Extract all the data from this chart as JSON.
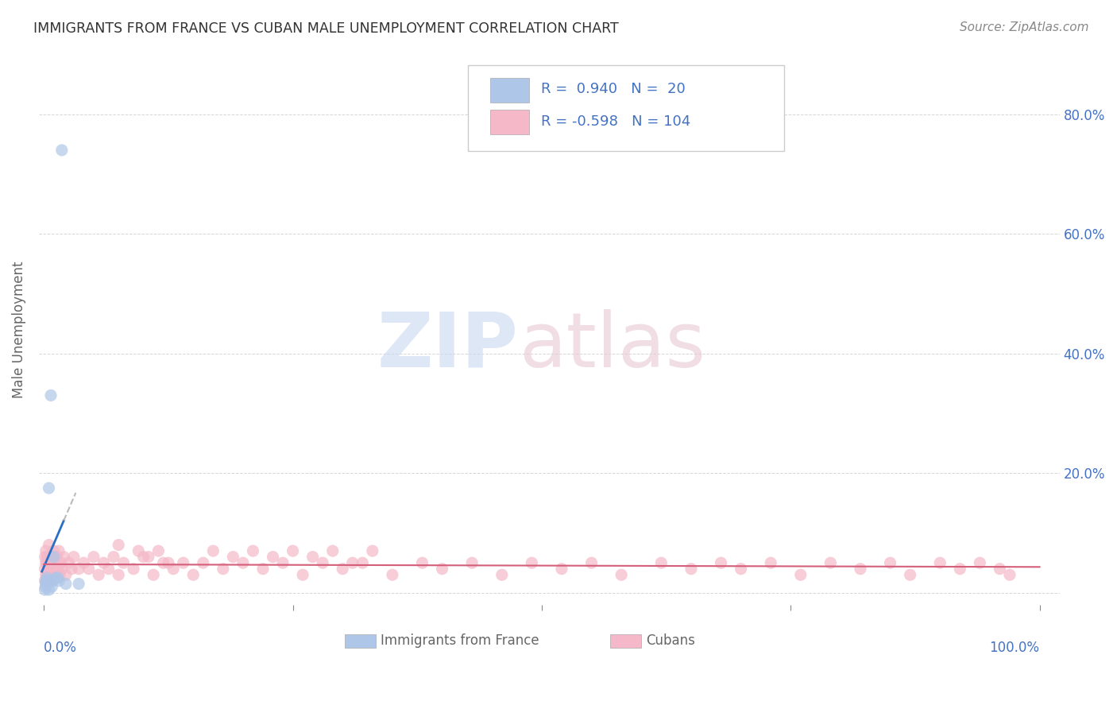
{
  "title": "IMMIGRANTS FROM FRANCE VS CUBAN MALE UNEMPLOYMENT CORRELATION CHART",
  "source": "Source: ZipAtlas.com",
  "ylabel": "Male Unemployment",
  "background_color": "#ffffff",
  "grid_color": "#cccccc",
  "title_color": "#333333",
  "axis_color": "#4472C4",
  "france_scatter_color": "#aec6e8",
  "cuban_scatter_color": "#f4b8c8",
  "cuban_line_color": "#d45f7a",
  "france_line_color": "#2b6fc4",
  "france_line_ext_color": "#bbbbbb",
  "legend_text_color": "#4472C4",
  "watermark_zip_color": "#c8d8f0",
  "watermark_atlas_color": "#e8c8d5",
  "ytick_color": "#4472C4",
  "xtick_color": "#4472C4",
  "france_x": [
    0.001,
    0.0015,
    0.002,
    0.002,
    0.003,
    0.003,
    0.004,
    0.005,
    0.005,
    0.006,
    0.007,
    0.008,
    0.009,
    0.01,
    0.012,
    0.014,
    0.015,
    0.018,
    0.022,
    0.035
  ],
  "france_y": [
    0.005,
    0.01,
    0.015,
    0.02,
    0.018,
    0.025,
    0.02,
    0.175,
    0.005,
    0.02,
    0.33,
    0.01,
    0.02,
    0.06,
    0.025,
    0.025,
    0.02,
    0.74,
    0.015,
    0.015
  ],
  "cuban_x": [
    0.001,
    0.001,
    0.001,
    0.002,
    0.002,
    0.002,
    0.002,
    0.003,
    0.003,
    0.003,
    0.003,
    0.004,
    0.004,
    0.004,
    0.005,
    0.005,
    0.005,
    0.006,
    0.006,
    0.007,
    0.007,
    0.008,
    0.008,
    0.009,
    0.009,
    0.01,
    0.01,
    0.011,
    0.012,
    0.013,
    0.014,
    0.015,
    0.016,
    0.017,
    0.018,
    0.02,
    0.022,
    0.025,
    0.028,
    0.03,
    0.035,
    0.04,
    0.045,
    0.05,
    0.055,
    0.06,
    0.065,
    0.07,
    0.075,
    0.08,
    0.09,
    0.1,
    0.11,
    0.12,
    0.13,
    0.14,
    0.15,
    0.16,
    0.18,
    0.2,
    0.22,
    0.24,
    0.26,
    0.28,
    0.3,
    0.32,
    0.35,
    0.38,
    0.4,
    0.43,
    0.46,
    0.49,
    0.52,
    0.55,
    0.58,
    0.62,
    0.65,
    0.68,
    0.7,
    0.73,
    0.76,
    0.79,
    0.82,
    0.85,
    0.87,
    0.9,
    0.92,
    0.94,
    0.96,
    0.97,
    0.075,
    0.095,
    0.105,
    0.115,
    0.125,
    0.17,
    0.19,
    0.21,
    0.23,
    0.25,
    0.27,
    0.29,
    0.31,
    0.33
  ],
  "cuban_y": [
    0.06,
    0.04,
    0.02,
    0.05,
    0.03,
    0.07,
    0.02,
    0.05,
    0.03,
    0.06,
    0.02,
    0.04,
    0.06,
    0.03,
    0.05,
    0.08,
    0.02,
    0.05,
    0.03,
    0.06,
    0.03,
    0.05,
    0.03,
    0.06,
    0.02,
    0.05,
    0.07,
    0.03,
    0.05,
    0.06,
    0.04,
    0.07,
    0.03,
    0.05,
    0.04,
    0.06,
    0.03,
    0.05,
    0.04,
    0.06,
    0.04,
    0.05,
    0.04,
    0.06,
    0.03,
    0.05,
    0.04,
    0.06,
    0.03,
    0.05,
    0.04,
    0.06,
    0.03,
    0.05,
    0.04,
    0.05,
    0.03,
    0.05,
    0.04,
    0.05,
    0.04,
    0.05,
    0.03,
    0.05,
    0.04,
    0.05,
    0.03,
    0.05,
    0.04,
    0.05,
    0.03,
    0.05,
    0.04,
    0.05,
    0.03,
    0.05,
    0.04,
    0.05,
    0.04,
    0.05,
    0.03,
    0.05,
    0.04,
    0.05,
    0.03,
    0.05,
    0.04,
    0.05,
    0.04,
    0.03,
    0.08,
    0.07,
    0.06,
    0.07,
    0.05,
    0.07,
    0.06,
    0.07,
    0.06,
    0.07,
    0.06,
    0.07,
    0.05,
    0.07
  ],
  "xlim": [
    -0.005,
    1.02
  ],
  "ylim": [
    -0.02,
    0.9
  ],
  "yticks": [
    0.0,
    0.2,
    0.4,
    0.6,
    0.8
  ],
  "ytick_labels": [
    "",
    "20.0%",
    "40.0%",
    "60.0%",
    "80.0%"
  ],
  "xtick_labels_left": "0.0%",
  "xtick_labels_right": "100.0%",
  "legend_R1": "R = ",
  "legend_V1": "0.940",
  "legend_N1_label": "N = ",
  "legend_N1": " 20",
  "legend_R2": "R = ",
  "legend_V2": "-0.598",
  "legend_N2_label": "N = ",
  "legend_N2": "104",
  "bottom_legend": [
    "Immigrants from France",
    "Cubans"
  ],
  "scatter_size": 120,
  "scatter_alpha": 0.7
}
